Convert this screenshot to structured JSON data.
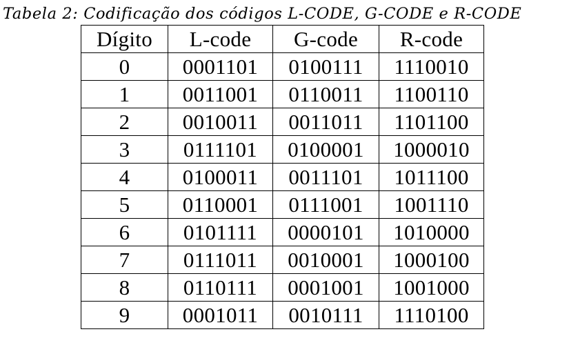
{
  "caption": "Tabela 2: Codificação dos códigos L-CODE, G-CODE e R-CODE",
  "table": {
    "headers": [
      "Dígito",
      "L-code",
      "G-code",
      "R-code"
    ],
    "rows": [
      [
        "0",
        "0001101",
        "0100111",
        "1110010"
      ],
      [
        "1",
        "0011001",
        "0110011",
        "1100110"
      ],
      [
        "2",
        "0010011",
        "0011011",
        "1101100"
      ],
      [
        "3",
        "0111101",
        "0100001",
        "1000010"
      ],
      [
        "4",
        "0100011",
        "0011101",
        "1011100"
      ],
      [
        "5",
        "0110001",
        "0111001",
        "1001110"
      ],
      [
        "6",
        "0101111",
        "0000101",
        "1010000"
      ],
      [
        "7",
        "0111011",
        "0010001",
        "1000100"
      ],
      [
        "8",
        "0110111",
        "0001001",
        "1001000"
      ],
      [
        "9",
        "0001011",
        "0010111",
        "1110100"
      ]
    ]
  }
}
